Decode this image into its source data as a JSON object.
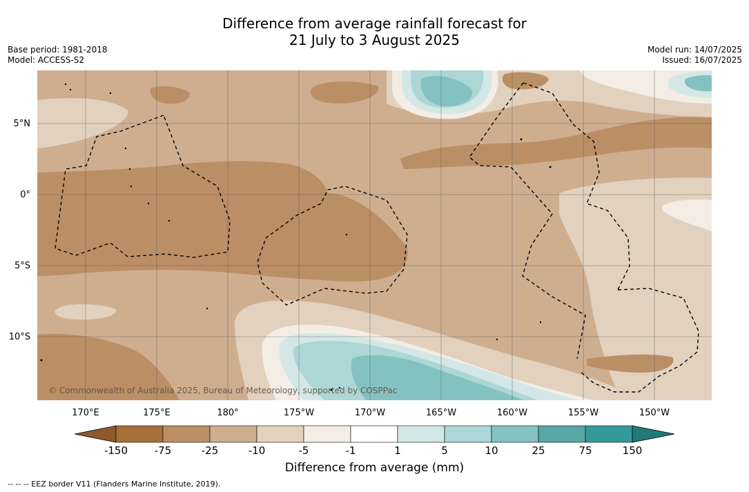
{
  "title": {
    "line1": "Difference from average rainfall forecast for",
    "line2": "21 July to 3 August 2025"
  },
  "meta_left": {
    "base_period": "Base period: 1981-2018",
    "model": "Model: ACCESS-S2"
  },
  "meta_right": {
    "model_run": "Model run: 14/07/2025",
    "issued": "Issued: 16/07/2025"
  },
  "map": {
    "lon_ticks": [
      "170°E",
      "175°E",
      "180°",
      "175°W",
      "170°W",
      "165°W",
      "160°W",
      "155°W",
      "150°W"
    ],
    "lat_ticks": [
      "5°N",
      "0°",
      "5°S",
      "10°S"
    ],
    "copyright": "© Commonwealth of Australia 2025, Bureau of Meteorology, supported by COSPPac"
  },
  "colorbar": {
    "labels": [
      "-150",
      "-75",
      "-25",
      "-10",
      "-5",
      "-1",
      "1",
      "5",
      "10",
      "25",
      "75",
      "150"
    ],
    "colors": [
      "#a8703a",
      "#bb8f65",
      "#cfae90",
      "#e2d1bf",
      "#f3ede6",
      "#ffffff",
      "#d3e8e6",
      "#add7d6",
      "#84c2c1",
      "#57a8a7",
      "#35999a"
    ],
    "extend_low_color": "#8e5a2d",
    "extend_high_color": "#217a7a",
    "title": "Difference from average (mm)"
  },
  "footer": "--  --  -- EEZ border V11 (Flanders Marine Institute, 2019)."
}
